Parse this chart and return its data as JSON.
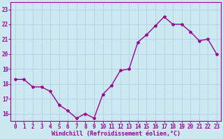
{
  "x": [
    0,
    1,
    2,
    3,
    4,
    5,
    6,
    7,
    8,
    9,
    10,
    11,
    12,
    13,
    14,
    15,
    16,
    17,
    18,
    19,
    20,
    21,
    22,
    23
  ],
  "y": [
    18.3,
    18.3,
    17.8,
    17.8,
    17.5,
    16.6,
    16.2,
    15.7,
    16.0,
    15.7,
    17.3,
    17.9,
    18.9,
    19.0,
    20.8,
    21.3,
    21.9,
    22.5,
    22.0,
    22.0,
    21.5,
    20.9,
    21.0,
    20.0
  ],
  "line_color": "#990099",
  "marker": "*",
  "marker_size": 3,
  "bg_color": "#cce8f0",
  "grid_color": "#aaccdd",
  "xlabel": "Windchill (Refroidissement éolien,°C)",
  "xlim": [
    -0.5,
    23.5
  ],
  "ylim": [
    15.5,
    23.5
  ],
  "yticks": [
    16,
    17,
    18,
    19,
    20,
    21,
    22,
    23
  ],
  "xticks": [
    0,
    1,
    2,
    3,
    4,
    5,
    6,
    7,
    8,
    9,
    10,
    11,
    12,
    13,
    14,
    15,
    16,
    17,
    18,
    19,
    20,
    21,
    22,
    23
  ],
  "tick_fontsize": 5.5,
  "xlabel_fontsize": 6,
  "linewidth": 1.0
}
